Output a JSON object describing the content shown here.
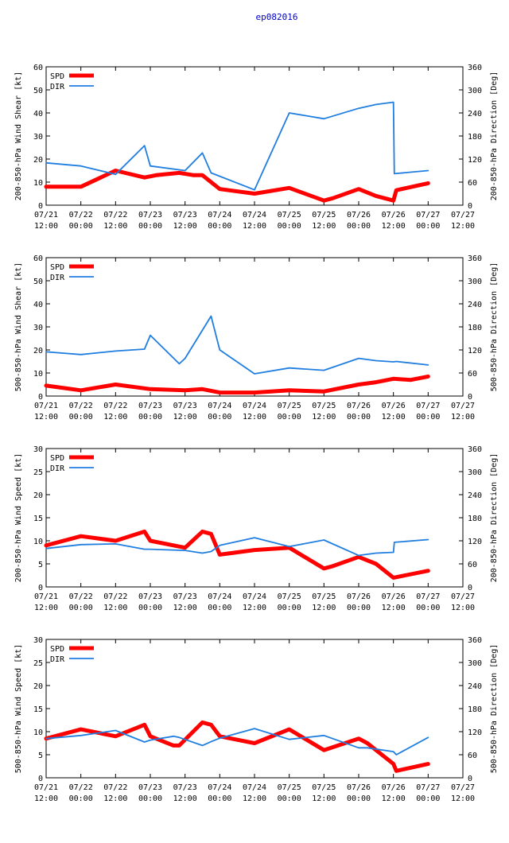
{
  "figure": {
    "title": "ep082016"
  },
  "colors": {
    "spd": "#ff0000",
    "dir": "#1f7ee0",
    "axis": "#000000",
    "title": "#0000cc"
  },
  "x_ticks": [
    {
      "date": "07/21",
      "time": "12:00"
    },
    {
      "date": "07/22",
      "time": "00:00"
    },
    {
      "date": "07/22",
      "time": "12:00"
    },
    {
      "date": "07/23",
      "time": "00:00"
    },
    {
      "date": "07/23",
      "time": "12:00"
    },
    {
      "date": "07/24",
      "time": "00:00"
    },
    {
      "date": "07/24",
      "time": "12:00"
    },
    {
      "date": "07/25",
      "time": "00:00"
    },
    {
      "date": "07/25",
      "time": "12:00"
    },
    {
      "date": "07/26",
      "time": "00:00"
    },
    {
      "date": "07/26",
      "time": "12:00"
    },
    {
      "date": "07/27",
      "time": "00:00"
    },
    {
      "date": "07/27",
      "time": "12:00"
    }
  ],
  "chart_data": [
    {
      "type": "line",
      "xlabel": "",
      "ylabel": "200-850-hPa Wind Shear [kt]",
      "y2label": "200-850-hPa Direction [Deg]",
      "xlim_hours": [
        0,
        144
      ],
      "ylim": [
        0,
        60
      ],
      "yticks": [
        0,
        10,
        20,
        30,
        40,
        50,
        60
      ],
      "y2lim": [
        0,
        360
      ],
      "y2ticks": [
        0,
        60,
        120,
        180,
        240,
        300,
        360
      ],
      "legend": "top-left",
      "series": [
        {
          "name": "SPD",
          "axis": "left",
          "x": [
            0,
            12,
            24,
            34,
            38,
            46,
            51,
            54,
            60,
            72,
            84,
            96,
            99,
            108,
            114,
            120,
            121,
            132
          ],
          "y": [
            8,
            8,
            15,
            12,
            13,
            14,
            13,
            13,
            7,
            5,
            7.5,
            2,
            3,
            7,
            4,
            2,
            6.5,
            9.5
          ]
        },
        {
          "name": "DIR",
          "axis": "right",
          "x": [
            0,
            12,
            24,
            34,
            36,
            48,
            54,
            57,
            72,
            84,
            96,
            108,
            114,
            120,
            120.3,
            132
          ],
          "y": [
            110,
            102,
            80,
            155,
            102,
            90,
            136,
            84,
            40,
            240,
            225,
            252,
            262,
            268,
            82,
            90
          ]
        }
      ]
    },
    {
      "type": "line",
      "xlabel": "",
      "ylabel": "500-850-hPa Wind Shear [kt]",
      "y2label": "500-850-hPa Direction [Deg]",
      "xlim_hours": [
        0,
        144
      ],
      "ylim": [
        0,
        60
      ],
      "yticks": [
        0,
        10,
        20,
        30,
        40,
        50,
        60
      ],
      "y2lim": [
        0,
        360
      ],
      "y2ticks": [
        0,
        60,
        120,
        180,
        240,
        300,
        360
      ],
      "legend": "top-left",
      "series": [
        {
          "name": "SPD",
          "axis": "left",
          "x": [
            0,
            12,
            24,
            36,
            48,
            54,
            60,
            72,
            84,
            96,
            108,
            114,
            120,
            126,
            132
          ],
          "y": [
            4.5,
            2.5,
            5,
            3,
            2.5,
            3,
            1.5,
            1.5,
            2.5,
            2,
            5,
            6,
            7.5,
            7,
            8.5
          ]
        },
        {
          "name": "DIR",
          "axis": "right",
          "x": [
            0,
            12,
            24,
            34,
            36,
            46,
            48,
            57,
            60,
            72,
            84,
            96,
            108,
            114,
            120,
            121,
            132
          ],
          "y": [
            115,
            108,
            117,
            122,
            158,
            84,
            98,
            208,
            120,
            58,
            73,
            67,
            98,
            92,
            89,
            90,
            81
          ]
        }
      ]
    },
    {
      "type": "line",
      "xlabel": "",
      "ylabel": "200-850-hPa Wind Speed [kt]",
      "y2label": "200-850-hPa Direction [Deg]",
      "xlim_hours": [
        0,
        144
      ],
      "ylim": [
        0,
        30
      ],
      "yticks": [
        0,
        5,
        10,
        15,
        20,
        25,
        30
      ],
      "y2lim": [
        0,
        360
      ],
      "y2ticks": [
        0,
        60,
        120,
        180,
        240,
        300,
        360
      ],
      "legend": "top-left",
      "series": [
        {
          "name": "SPD",
          "axis": "left",
          "x": [
            0,
            12,
            24,
            34,
            36,
            48,
            54,
            57,
            60,
            72,
            84,
            96,
            99,
            108,
            114,
            120,
            132
          ],
          "y": [
            9,
            11,
            10,
            12,
            10,
            8.5,
            12,
            11.5,
            7,
            8,
            8.5,
            4,
            4.5,
            6.5,
            5,
            2,
            3.5
          ]
        },
        {
          "name": "DIR",
          "axis": "right",
          "x": [
            0,
            12,
            24,
            34,
            36,
            48,
            54,
            57,
            60,
            72,
            84,
            96,
            108,
            114,
            120,
            120.3,
            132
          ],
          "y": [
            100,
            110,
            112,
            98,
            98,
            95,
            88,
            92,
            108,
            128,
            105,
            122,
            82,
            88,
            90,
            116,
            123
          ]
        }
      ]
    },
    {
      "type": "line",
      "xlabel": "",
      "ylabel": "500-850-hPa Wind Speed [kt]",
      "y2label": "500-850-hPa Direction [Deg]",
      "xlim_hours": [
        0,
        144
      ],
      "ylim": [
        0,
        30
      ],
      "yticks": [
        0,
        5,
        10,
        15,
        20,
        25,
        30
      ],
      "y2lim": [
        0,
        360
      ],
      "y2ticks": [
        0,
        60,
        120,
        180,
        240,
        300,
        360
      ],
      "legend": "top-left",
      "series": [
        {
          "name": "SPD",
          "axis": "left",
          "x": [
            0,
            12,
            24,
            34,
            36,
            44,
            46,
            54,
            57,
            60,
            72,
            84,
            96,
            108,
            111,
            120,
            121,
            132
          ],
          "y": [
            8.5,
            10.5,
            9,
            11.5,
            9,
            7,
            7,
            12,
            11.5,
            9,
            7.5,
            10.5,
            6,
            8.5,
            7.5,
            3,
            1.5,
            3
          ]
        },
        {
          "name": "DIR",
          "axis": "right",
          "x": [
            0,
            12,
            24,
            34,
            36,
            44,
            46,
            54,
            57,
            60,
            72,
            84,
            96,
            108,
            111,
            120,
            121,
            132
          ],
          "y": [
            102,
            110,
            123,
            93,
            98,
            108,
            105,
            84,
            94,
            103,
            128,
            100,
            110,
            78,
            78,
            68,
            60,
            105
          ]
        }
      ]
    }
  ]
}
